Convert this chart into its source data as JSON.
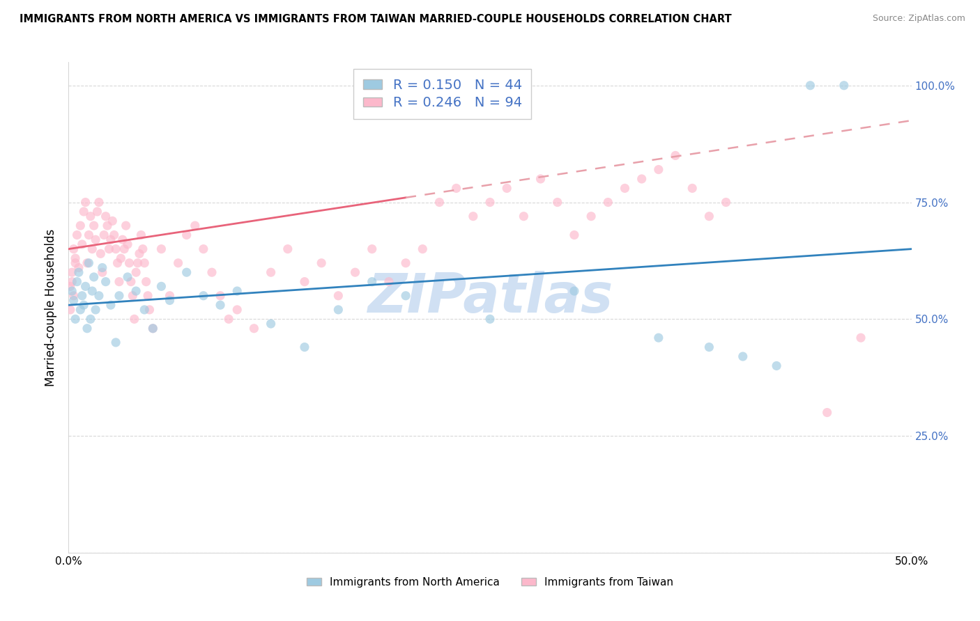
{
  "title": "IMMIGRANTS FROM NORTH AMERICA VS IMMIGRANTS FROM TAIWAN MARRIED-COUPLE HOUSEHOLDS CORRELATION CHART",
  "source": "Source: ZipAtlas.com",
  "ylabel": "Married-couple Households",
  "xlim": [
    0.0,
    0.5
  ],
  "ylim": [
    0.0,
    1.05
  ],
  "blue_R": 0.15,
  "blue_N": 44,
  "pink_R": 0.246,
  "pink_N": 94,
  "blue_color": "#9ecae1",
  "pink_color": "#fcb8cb",
  "blue_line_color": "#3182bd",
  "pink_line_color": "#e8637a",
  "pink_dash_color": "#e8a0aa",
  "legend_text_color": "#4472c4",
  "right_tick_color": "#4472c4",
  "watermark_text": "ZIPatlas",
  "watermark_color": "#c5d9f0",
  "blue_scatter_x": [
    0.003,
    0.005,
    0.007,
    0.002,
    0.004,
    0.006,
    0.008,
    0.009,
    0.01,
    0.011,
    0.012,
    0.013,
    0.014,
    0.015,
    0.016,
    0.018,
    0.02,
    0.022,
    0.025,
    0.028,
    0.03,
    0.035,
    0.04,
    0.045,
    0.05,
    0.055,
    0.06,
    0.07,
    0.08,
    0.09,
    0.1,
    0.12,
    0.14,
    0.16,
    0.18,
    0.2,
    0.25,
    0.3,
    0.35,
    0.38,
    0.4,
    0.42,
    0.44,
    0.46
  ],
  "blue_scatter_y": [
    0.54,
    0.58,
    0.52,
    0.56,
    0.5,
    0.6,
    0.55,
    0.53,
    0.57,
    0.48,
    0.62,
    0.5,
    0.56,
    0.59,
    0.52,
    0.55,
    0.61,
    0.58,
    0.53,
    0.45,
    0.55,
    0.59,
    0.56,
    0.52,
    0.48,
    0.57,
    0.54,
    0.6,
    0.55,
    0.53,
    0.56,
    0.49,
    0.44,
    0.52,
    0.58,
    0.55,
    0.5,
    0.56,
    0.46,
    0.44,
    0.42,
    0.4,
    1.0,
    1.0
  ],
  "pink_scatter_x": [
    0.001,
    0.002,
    0.003,
    0.004,
    0.001,
    0.002,
    0.003,
    0.004,
    0.005,
    0.006,
    0.007,
    0.008,
    0.009,
    0.01,
    0.011,
    0.012,
    0.013,
    0.014,
    0.015,
    0.016,
    0.017,
    0.018,
    0.019,
    0.02,
    0.021,
    0.022,
    0.023,
    0.024,
    0.025,
    0.026,
    0.027,
    0.028,
    0.029,
    0.03,
    0.031,
    0.032,
    0.033,
    0.034,
    0.035,
    0.036,
    0.037,
    0.038,
    0.039,
    0.04,
    0.041,
    0.042,
    0.043,
    0.044,
    0.045,
    0.046,
    0.047,
    0.048,
    0.05,
    0.055,
    0.06,
    0.065,
    0.07,
    0.075,
    0.08,
    0.085,
    0.09,
    0.095,
    0.1,
    0.11,
    0.12,
    0.13,
    0.14,
    0.15,
    0.16,
    0.17,
    0.18,
    0.19,
    0.2,
    0.21,
    0.22,
    0.23,
    0.24,
    0.25,
    0.26,
    0.27,
    0.28,
    0.29,
    0.3,
    0.31,
    0.32,
    0.33,
    0.34,
    0.35,
    0.36,
    0.37,
    0.38,
    0.39,
    0.45,
    0.47
  ],
  "pink_scatter_y": [
    0.57,
    0.6,
    0.55,
    0.62,
    0.52,
    0.58,
    0.65,
    0.63,
    0.68,
    0.61,
    0.7,
    0.66,
    0.73,
    0.75,
    0.62,
    0.68,
    0.72,
    0.65,
    0.7,
    0.67,
    0.73,
    0.75,
    0.64,
    0.6,
    0.68,
    0.72,
    0.7,
    0.65,
    0.67,
    0.71,
    0.68,
    0.65,
    0.62,
    0.58,
    0.63,
    0.67,
    0.65,
    0.7,
    0.66,
    0.62,
    0.58,
    0.55,
    0.5,
    0.6,
    0.62,
    0.64,
    0.68,
    0.65,
    0.62,
    0.58,
    0.55,
    0.52,
    0.48,
    0.65,
    0.55,
    0.62,
    0.68,
    0.7,
    0.65,
    0.6,
    0.55,
    0.5,
    0.52,
    0.48,
    0.6,
    0.65,
    0.58,
    0.62,
    0.55,
    0.6,
    0.65,
    0.58,
    0.62,
    0.65,
    0.75,
    0.78,
    0.72,
    0.75,
    0.78,
    0.72,
    0.8,
    0.75,
    0.68,
    0.72,
    0.75,
    0.78,
    0.8,
    0.82,
    0.85,
    0.78,
    0.72,
    0.75,
    0.3,
    0.46
  ]
}
